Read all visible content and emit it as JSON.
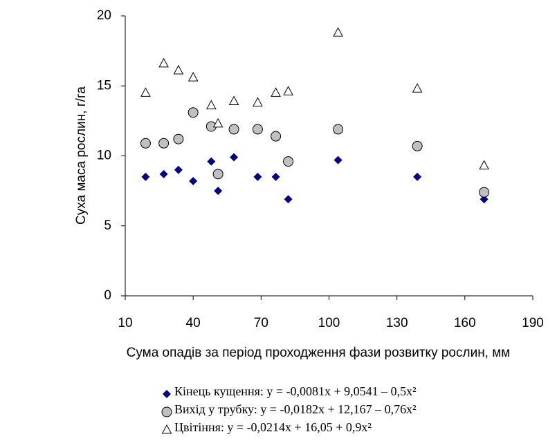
{
  "chart_data": {
    "type": "scatter",
    "x_label": "Сума опадів за період проходження фази розвитку рослин, мм",
    "y_label": "Суха маса рослин, г/га",
    "xlim": [
      10,
      190
    ],
    "xticks": [
      10,
      40,
      70,
      100,
      130,
      160,
      190
    ],
    "ylim": [
      0,
      20
    ],
    "yticks": [
      0,
      5,
      10,
      15,
      20
    ],
    "series": [
      {
        "name": "Кінець кущення: y = -0,0081x + 9,0541 – 0,5x²",
        "color": "#000080",
        "marker": "diamond",
        "x": [
          19,
          27,
          33.5,
          40,
          48,
          51,
          58,
          68.5,
          76.5,
          82,
          104,
          139,
          168.5
        ],
        "values": [
          8.5,
          8.7,
          9.0,
          8.2,
          9.6,
          7.5,
          9.9,
          8.5,
          8.5,
          6.9,
          9.7,
          8.5,
          6.9
        ]
      },
      {
        "name": "Вихід у трубку: y = -0,0182x + 12,167 – 0,76x²",
        "color": "#c0c0c0",
        "marker": "circle",
        "x": [
          19,
          27,
          33.5,
          40,
          48,
          51,
          58,
          68.5,
          76.5,
          82,
          104,
          139,
          168.5
        ],
        "values": [
          10.9,
          10.9,
          11.2,
          13.1,
          12.1,
          8.7,
          11.9,
          11.9,
          11.4,
          9.6,
          11.9,
          10.7,
          7.4
        ]
      },
      {
        "name": "Цвітіння: y = -0,0214x + 16,05 + 0,9x²",
        "color": "#ffffff",
        "marker": "triangle",
        "x": [
          19,
          27,
          33.5,
          40,
          48,
          51,
          58,
          68.5,
          76.5,
          82,
          104,
          139,
          168.5
        ],
        "values": [
          14.5,
          16.6,
          16.1,
          15.6,
          13.6,
          12.3,
          13.9,
          13.8,
          14.5,
          14.6,
          18.8,
          14.8,
          9.3
        ]
      }
    ]
  }
}
